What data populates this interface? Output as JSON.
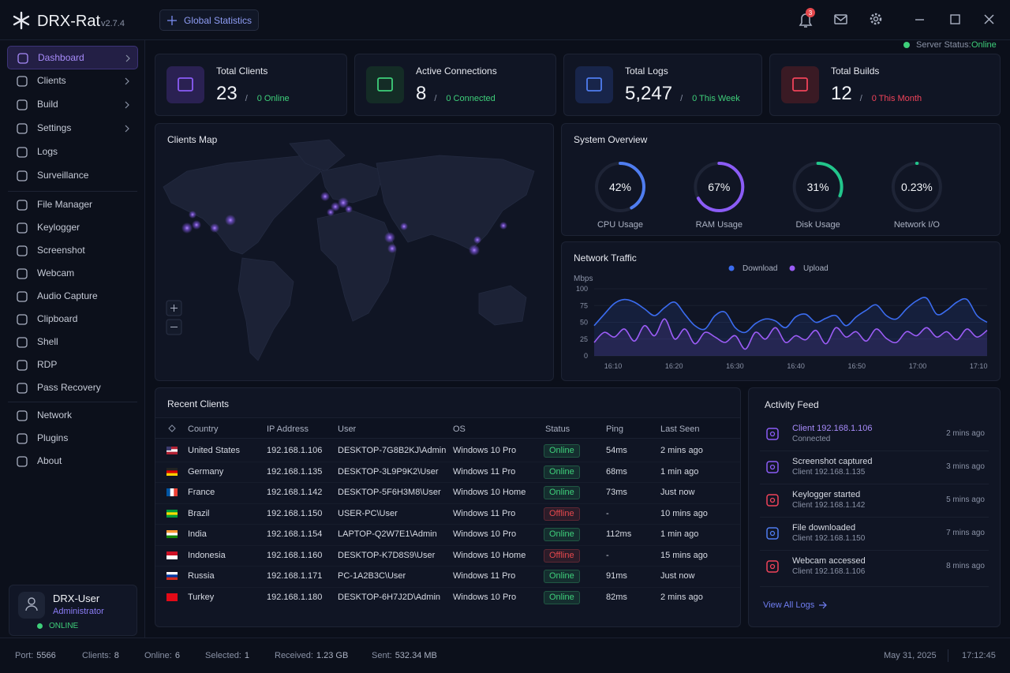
{
  "header": {
    "brand": "DRX-Rat",
    "version": "v2.7.4",
    "tab": "Global Statistics",
    "notification_count": "3",
    "server_status_label": "Server Status:",
    "server_status": "Online"
  },
  "sidebar": {
    "groups": [
      [
        {
          "label": "Dashboard",
          "has_submenu": true,
          "active": true
        },
        {
          "label": "Clients",
          "has_submenu": true
        },
        {
          "label": "Build",
          "has_submenu": true
        },
        {
          "label": "Settings",
          "has_submenu": true
        },
        {
          "label": "Logs"
        },
        {
          "label": "Surveillance"
        }
      ],
      [
        {
          "label": "File Manager"
        },
        {
          "label": "Keylogger"
        },
        {
          "label": "Screenshot"
        },
        {
          "label": "Webcam"
        },
        {
          "label": "Audio Capture"
        },
        {
          "label": "Clipboard"
        },
        {
          "label": "Shell"
        },
        {
          "label": "RDP"
        },
        {
          "label": "Pass Recovery"
        }
      ],
      [
        {
          "label": "Network"
        },
        {
          "label": "Plugins"
        },
        {
          "label": "About"
        }
      ]
    ],
    "user": {
      "name": "DRX-User",
      "role": "Administrator",
      "status": "ONLINE"
    }
  },
  "stats": {
    "separator": "/",
    "cards": [
      {
        "label": "Total Clients",
        "value": "23",
        "sub": "0 Online",
        "color": "#8b5cf6",
        "bg": "#2a2152",
        "sub_color": "#3ecf7a"
      },
      {
        "label": "Active Connections",
        "value": "8",
        "sub": "0 Connected",
        "color": "#3ecf7a",
        "bg": "#142c26",
        "sub_color": "#3ecf7a"
      },
      {
        "label": "Total Logs",
        "value": "5,247",
        "sub": "0 This Week",
        "color": "#4f7df0",
        "bg": "#18254a",
        "sub_color": "#3ecf7a"
      },
      {
        "label": "Total Builds",
        "value": "12",
        "sub": "0 This Month",
        "color": "#f0435a",
        "bg": "#3a1a24",
        "sub_color": "#f0435a"
      }
    ]
  },
  "map": {
    "title": "Clients Map"
  },
  "system": {
    "title": "System Overview",
    "gauges": [
      {
        "label": "CPU Usage",
        "value": 42,
        "value_label": "42%",
        "color": "#4f7df0"
      },
      {
        "label": "RAM Usage",
        "value": 67,
        "value_label": "67%",
        "color": "#8b5cf6"
      },
      {
        "label": "Disk Usage",
        "value": 31,
        "value_label": "31%",
        "color": "#22c58b"
      },
      {
        "label": "Network I/O",
        "value": 0.23,
        "value_label": "0.23%",
        "color": "#22c58b"
      }
    ]
  },
  "traffic": {
    "title": "Network Traffic",
    "y_label": "Mbps",
    "ylim": [
      0,
      100
    ],
    "yticks": [
      0,
      25,
      50,
      75,
      100
    ],
    "x_labels": [
      "16:10",
      "16:20",
      "16:30",
      "16:40",
      "16:50",
      "17:00",
      "17:10"
    ],
    "series": [
      {
        "name": "Download",
        "color": "#3b6cf0",
        "values": [
          45,
          62,
          78,
          84,
          80,
          70,
          60,
          72,
          80,
          62,
          45,
          40,
          60,
          65,
          42,
          35,
          48,
          55,
          52,
          42,
          58,
          62,
          50,
          56,
          60,
          45,
          58,
          68,
          76,
          60,
          55,
          70,
          82,
          86,
          62,
          68,
          80,
          84,
          60,
          50
        ]
      },
      {
        "name": "Upload",
        "color": "#9b5cf6",
        "values": [
          20,
          35,
          28,
          40,
          22,
          45,
          30,
          55,
          25,
          40,
          18,
          35,
          28,
          20,
          30,
          10,
          35,
          25,
          42,
          20,
          30,
          24,
          38,
          18,
          42,
          28,
          36,
          22,
          40,
          26,
          20,
          36,
          30,
          42,
          28,
          36,
          24,
          40,
          28,
          38
        ]
      }
    ]
  },
  "table": {
    "title": "Recent Clients",
    "headers": [
      "Country",
      "IP Address",
      "User",
      "OS",
      "Status",
      "Ping",
      "Last Seen"
    ],
    "rows": [
      [
        "United States",
        "192.168.1.106",
        "DESKTOP-7G8B2KJ\\Admin",
        "Windows 10 Pro",
        "Online",
        "54ms",
        "2 mins ago"
      ],
      [
        "Germany",
        "192.168.1.135",
        "DESKTOP-3L9P9K2\\User",
        "Windows 11 Pro",
        "Online",
        "68ms",
        "1 min ago"
      ],
      [
        "France",
        "192.168.1.142",
        "DESKTOP-5F6H3M8\\User",
        "Windows 10 Home",
        "Online",
        "73ms",
        "Just now"
      ],
      [
        "Brazil",
        "192.168.1.150",
        "USER-PC\\User",
        "Windows 11 Pro",
        "Offline",
        "-",
        "10 mins ago"
      ],
      [
        "India",
        "192.168.1.154",
        "LAPTOP-Q2W7E1\\Admin",
        "Windows 10 Pro",
        "Online",
        "112ms",
        "1 min ago"
      ],
      [
        "Indonesia",
        "192.168.1.160",
        "DESKTOP-K7D8S9\\User",
        "Windows 10 Home",
        "Offline",
        "-",
        "15 mins ago"
      ],
      [
        "Russia",
        "192.168.1.171",
        "PC-1A2B3C\\User",
        "Windows 11 Pro",
        "Online",
        "91ms",
        "Just now"
      ],
      [
        "Turkey",
        "192.168.1.180",
        "DESKTOP-6H7J2D\\Admin",
        "Windows 10 Pro",
        "Online",
        "82ms",
        "2 mins ago"
      ]
    ],
    "status_colors": [
      "#3ecf7a",
      "#3ecf7a",
      "#3ecf7a",
      "#e5484d",
      "#3ecf7a",
      "#e5484d",
      "#3ecf7a",
      "#3ecf7a"
    ]
  },
  "feed": {
    "title": "Activity Feed",
    "link": "View All Logs",
    "items": [
      {
        "title": "Client 192.168.1.106",
        "subtitle": "Connected",
        "time": "2 mins ago",
        "color": "#8b5cf6",
        "title_color": "#a78bfa"
      },
      {
        "title": "Screenshot captured",
        "subtitle": "Client 192.168.1.135",
        "time": "3 mins ago",
        "color": "#8b5cf6"
      },
      {
        "title": "Keylogger started",
        "subtitle": "Client 192.168.1.142",
        "time": "5 mins ago",
        "color": "#f0435a"
      },
      {
        "title": "File downloaded",
        "subtitle": "Client 192.168.1.150",
        "time": "7 mins ago",
        "color": "#4f7df0"
      },
      {
        "title": "Webcam accessed",
        "subtitle": "Client 192.168.1.106",
        "time": "8 mins ago",
        "color": "#f0435a"
      }
    ]
  },
  "footer": {
    "stats": [
      {
        "label": "Port:",
        "value": "5566"
      },
      {
        "label": "Clients:",
        "value": "8"
      },
      {
        "label": "Online:",
        "value": "6"
      },
      {
        "label": "Selected:",
        "value": "1"
      },
      {
        "label": "Received:",
        "value": "1.23 GB"
      },
      {
        "label": "Sent:",
        "value": "532.34 MB"
      }
    ],
    "date": "May 31, 2025",
    "time": "17:12:45"
  }
}
